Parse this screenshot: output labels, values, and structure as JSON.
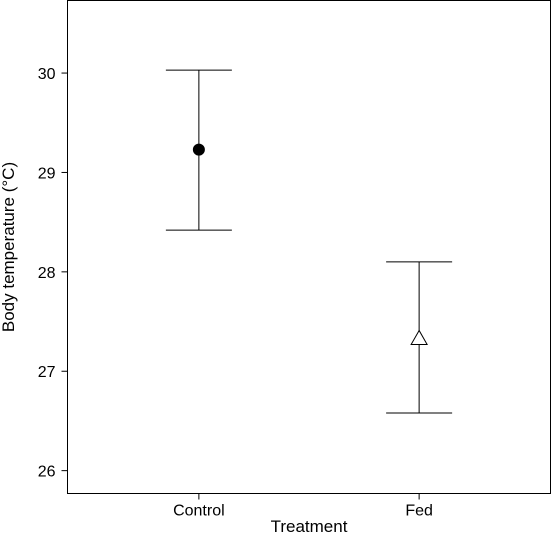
{
  "chart_data": {
    "type": "scatter",
    "title": "",
    "xlabel": "Treatment",
    "ylabel": "Body temperature (°C)",
    "categories": [
      "Control",
      "Fed"
    ],
    "ylim": [
      25.77,
      30.73
    ],
    "yticks": [
      26,
      27,
      28,
      29,
      30
    ],
    "ytick_labels": [
      "26",
      "27",
      "28",
      "29",
      "30"
    ],
    "grid": false,
    "legend": "none",
    "points": [
      {
        "category": "Control",
        "mean": 29.23,
        "lower": 28.42,
        "upper": 30.03,
        "marker": "filled-circle"
      },
      {
        "category": "Fed",
        "mean": 27.33,
        "lower": 26.58,
        "upper": 28.1,
        "marker": "open-triangle"
      }
    ],
    "colors": {
      "marker_fill": "#000000",
      "line": "#000000",
      "background": "#ffffff"
    }
  }
}
